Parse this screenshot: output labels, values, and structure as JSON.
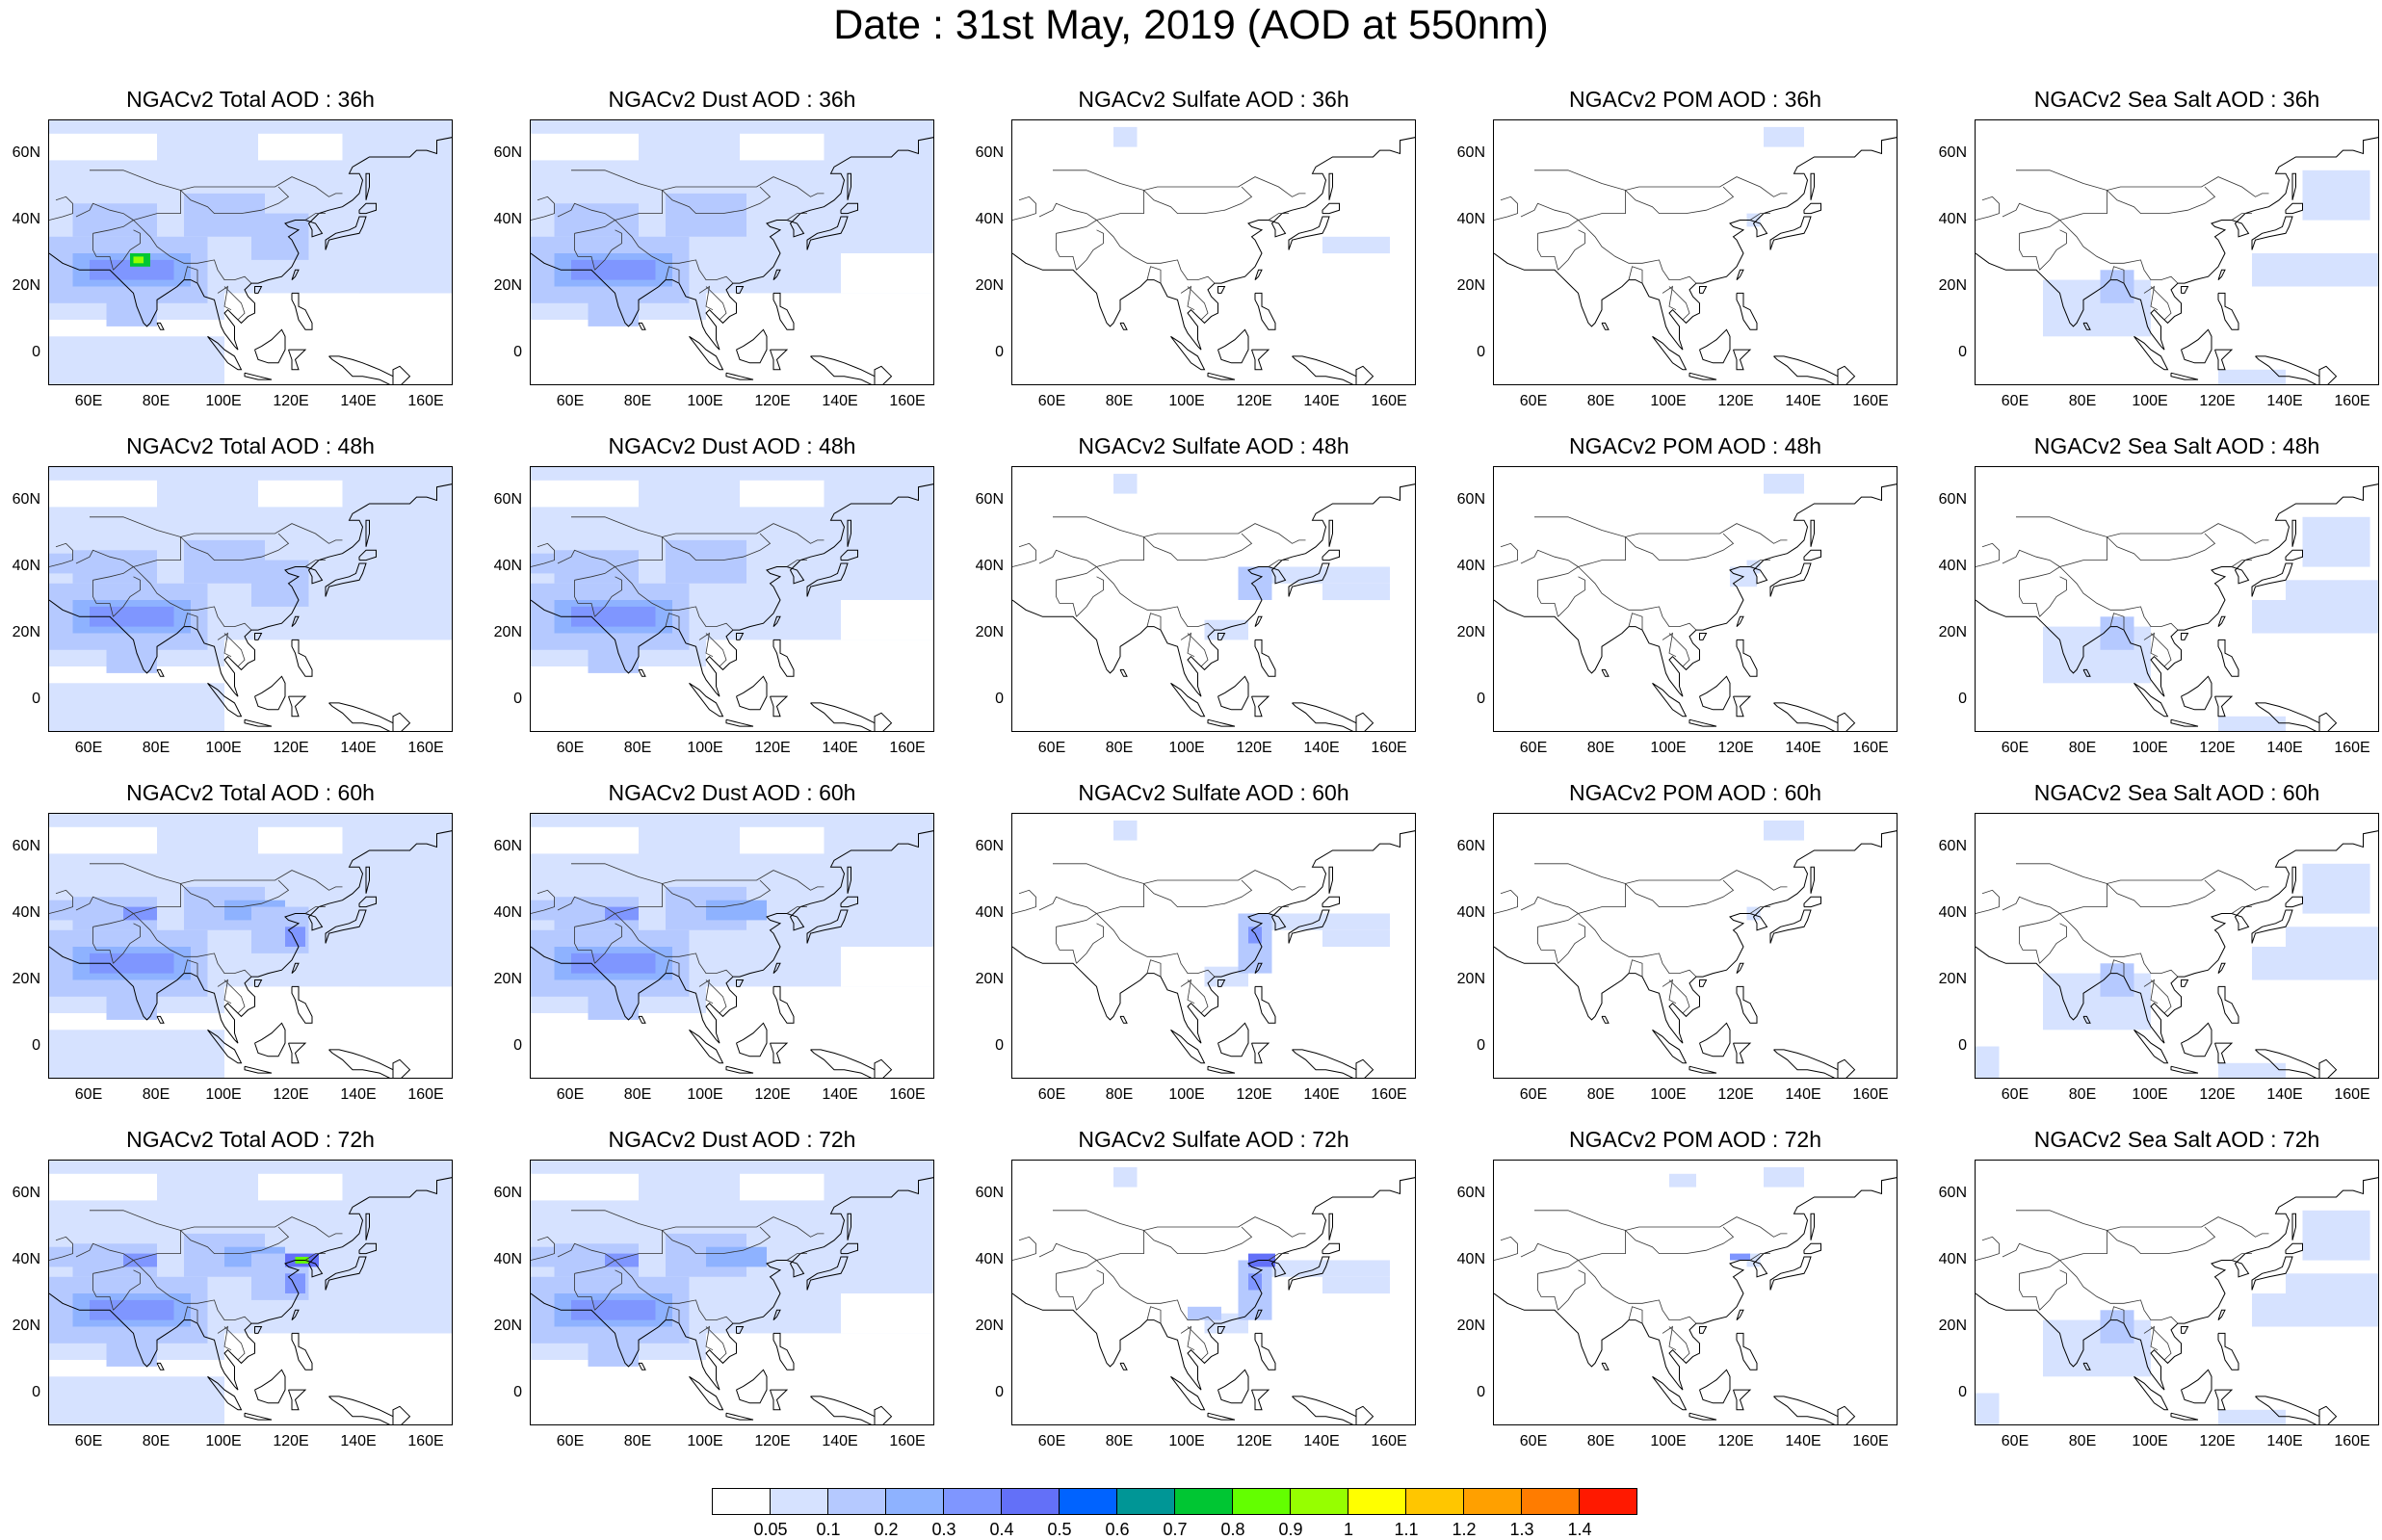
{
  "title": "Date : 31st May, 2019 (AOD at 550nm)",
  "lat_ticks": [
    "60N",
    "40N",
    "20N",
    "0"
  ],
  "lon_ticks": [
    "60E",
    "80E",
    "100E",
    "120E",
    "140E",
    "160E"
  ],
  "rows": [
    {
      "hour": "36h",
      "panels": [
        {
          "title": "NGACv2 Total AOD : 36h",
          "species": "total"
        },
        {
          "title": "NGACv2 Dust AOD : 36h",
          "species": "dust"
        },
        {
          "title": "NGACv2 Sulfate AOD : 36h",
          "species": "sulfate"
        },
        {
          "title": "NGACv2 POM AOD : 36h",
          "species": "pom"
        },
        {
          "title": "NGACv2 Sea Salt AOD : 36h",
          "species": "seasalt"
        }
      ]
    },
    {
      "hour": "48h",
      "panels": [
        {
          "title": "NGACv2 Total AOD : 48h",
          "species": "total"
        },
        {
          "title": "NGACv2 Dust AOD : 48h",
          "species": "dust"
        },
        {
          "title": "NGACv2 Sulfate AOD : 48h",
          "species": "sulfate"
        },
        {
          "title": "NGACv2 POM AOD : 48h",
          "species": "pom"
        },
        {
          "title": "NGACv2 Sea Salt AOD : 48h",
          "species": "seasalt"
        }
      ]
    },
    {
      "hour": "60h",
      "panels": [
        {
          "title": "NGACv2 Total AOD : 60h",
          "species": "total"
        },
        {
          "title": "NGACv2 Dust AOD : 60h",
          "species": "dust"
        },
        {
          "title": "NGACv2 Sulfate AOD : 60h",
          "species": "sulfate"
        },
        {
          "title": "NGACv2 POM AOD : 60h",
          "species": "pom"
        },
        {
          "title": "NGACv2 Sea Salt AOD : 60h",
          "species": "seasalt"
        }
      ]
    },
    {
      "hour": "72h",
      "panels": [
        {
          "title": "NGACv2 Total AOD : 72h",
          "species": "total"
        },
        {
          "title": "NGACv2 Dust AOD : 72h",
          "species": "dust"
        },
        {
          "title": "NGACv2 Sulfate AOD : 72h",
          "species": "sulfate"
        },
        {
          "title": "NGACv2 POM AOD : 72h",
          "species": "pom"
        },
        {
          "title": "NGACv2 Sea Salt  AOD : 72h",
          "species": "seasalt"
        }
      ]
    }
  ],
  "colorbar": {
    "labels": [
      "0.05",
      "0.1",
      "0.2",
      "0.3",
      "0.4",
      "0.5",
      "0.6",
      "0.7",
      "0.8",
      "0.9",
      "1",
      "1.1",
      "1.2",
      "1.3",
      "1.4"
    ],
    "colors": [
      "#ffffff",
      "#d6e2ff",
      "#b5c9ff",
      "#8eb2ff",
      "#7f96ff",
      "#6370f8",
      "#0063ff",
      "#009696",
      "#00c633",
      "#63ff00",
      "#96ff00",
      "#ffff00",
      "#ffc600",
      "#ffa000",
      "#ff7c00",
      "#ff1900"
    ]
  }
}
